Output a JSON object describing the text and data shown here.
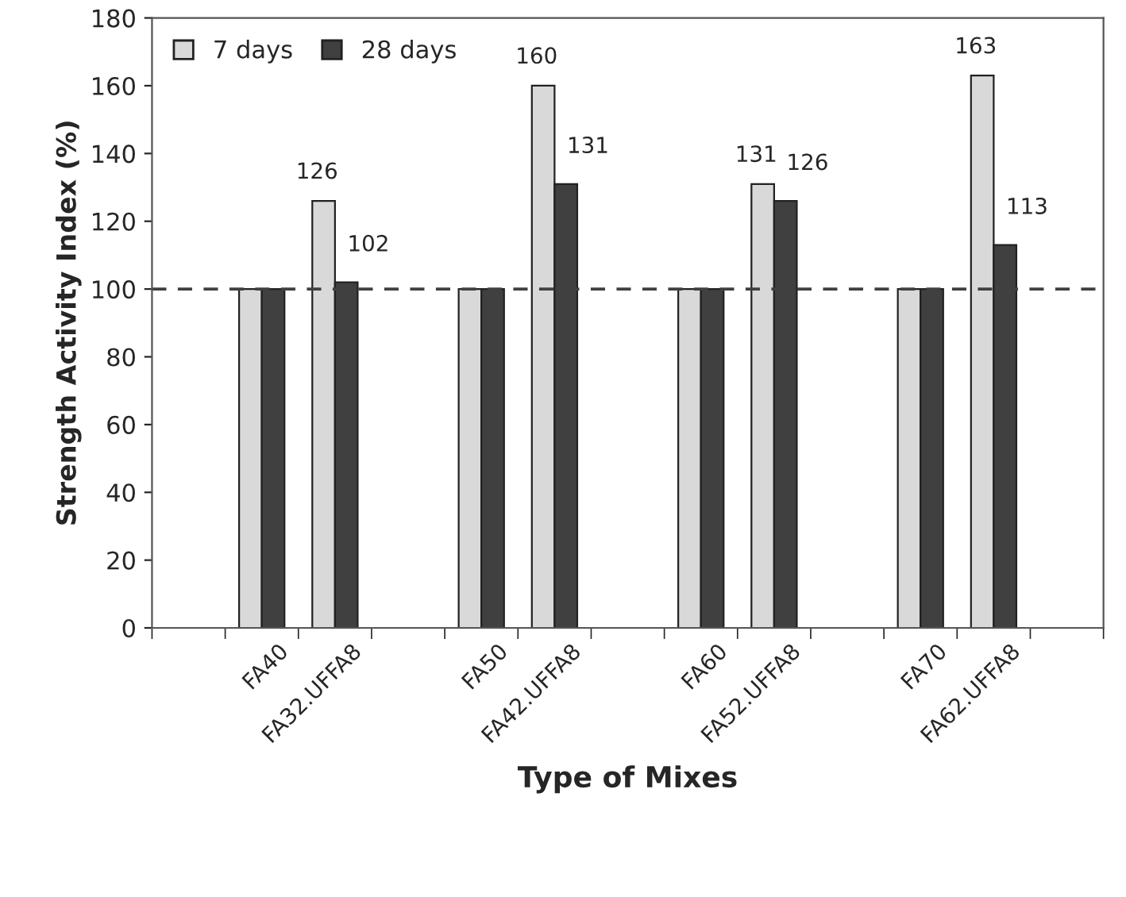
{
  "chart_data": {
    "type": "bar",
    "xlabel": "Type of Mixes",
    "ylabel": "Strength Activity Index (%)",
    "categories": [
      null,
      "FA40",
      "FA32.UFFA8",
      null,
      "FA50",
      "FA42.UFFA8",
      null,
      "FA60",
      "FA52.UFFA8",
      null,
      "FA70",
      "FA62.UFFA8",
      null
    ],
    "series": [
      {
        "name": "7 days",
        "color": "#d9d9d9",
        "values": [
          null,
          100,
          126,
          null,
          100,
          160,
          null,
          100,
          131,
          null,
          100,
          163,
          null
        ],
        "value_labels": [
          null,
          null,
          "126",
          null,
          null,
          "160",
          null,
          null,
          "131",
          null,
          null,
          "163",
          null
        ]
      },
      {
        "name": "28 days",
        "color": "#404040",
        "values": [
          null,
          100,
          102,
          null,
          100,
          131,
          null,
          100,
          126,
          null,
          100,
          113,
          null
        ],
        "value_labels": [
          null,
          null,
          "102",
          null,
          null,
          "131",
          null,
          null,
          "126",
          null,
          null,
          "113",
          null
        ]
      }
    ],
    "ylim": [
      0,
      180
    ],
    "yticks": [
      0,
      20,
      40,
      60,
      80,
      100,
      120,
      140,
      160,
      180
    ],
    "ref_lines": [
      {
        "axis": "y",
        "value": 100,
        "color": "#404040",
        "line_style": "dashed"
      }
    ],
    "grid": false,
    "legend": "top left"
  }
}
